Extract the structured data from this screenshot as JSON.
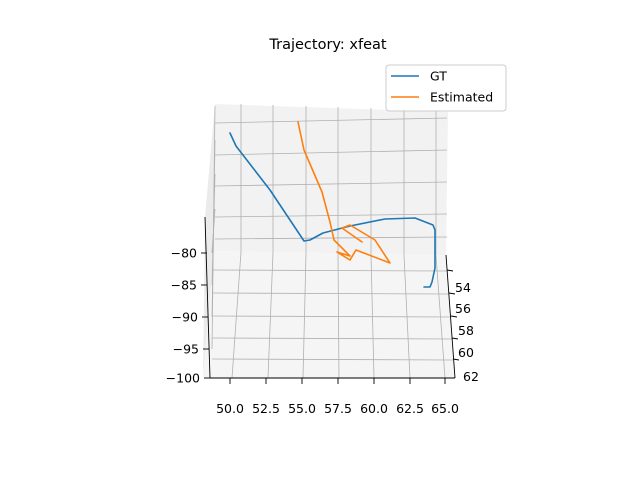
{
  "chart_data": {
    "type": "line",
    "projection": "3d",
    "title": "Trajectory: xfeat",
    "legend": {
      "placement": "top-right",
      "entries": [
        "GT",
        "Estimated"
      ]
    },
    "grid": true,
    "axes": {
      "x": {
        "ticks": [
          "50.0",
          "52.5",
          "55.0",
          "57.5",
          "60.0",
          "62.5",
          "65.0"
        ],
        "range": [
          49,
          65.5
        ]
      },
      "y": {
        "ticks": [
          "54",
          "56",
          "58",
          "60",
          "62"
        ],
        "range": [
          53,
          62
        ]
      },
      "z": {
        "ticks": [
          "−80",
          "−85",
          "−90",
          "−95",
          "−100"
        ],
        "range": [
          -100,
          -78
        ]
      }
    },
    "series": [
      {
        "name": "GT",
        "color": "#1f77b4"
      },
      {
        "name": "Estimated",
        "color": "#ff7f0e"
      }
    ]
  }
}
